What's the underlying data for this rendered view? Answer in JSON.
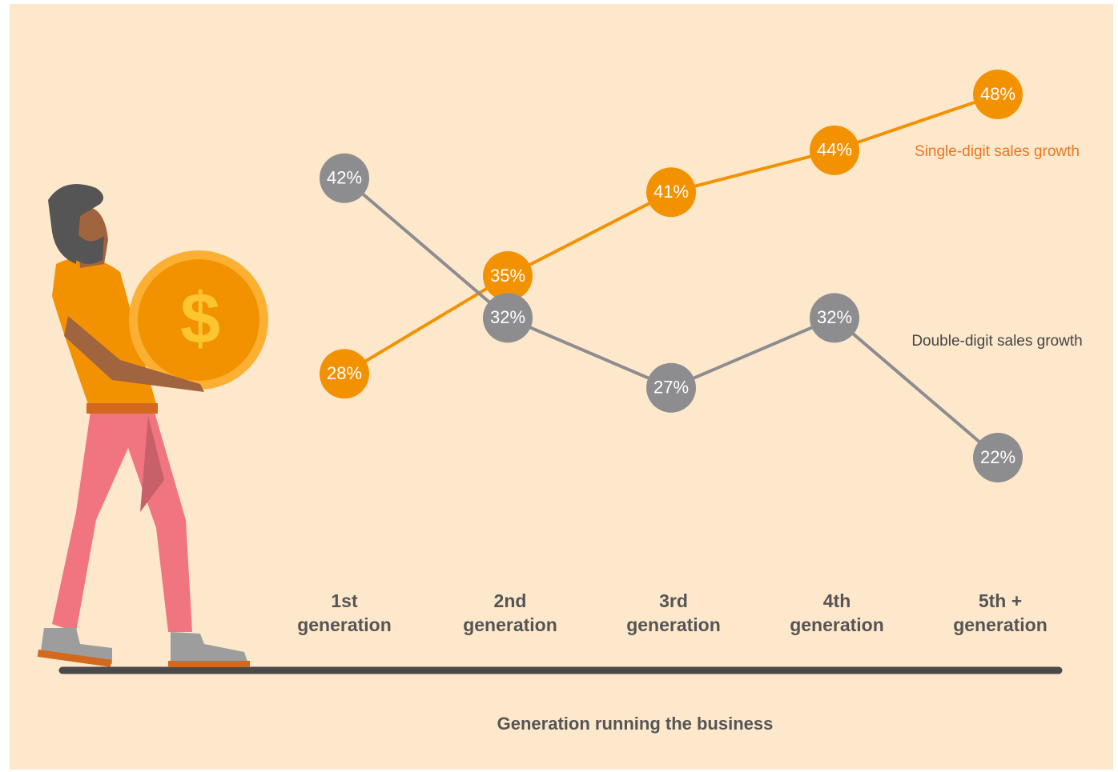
{
  "chart_data": {
    "type": "line",
    "categories": [
      "1st generation",
      "2nd generation",
      "3rd generation",
      "4th generation",
      "5th + generation"
    ],
    "series": [
      {
        "name": "Single-digit sales growth",
        "color": "#f39200",
        "values": [
          28,
          35,
          41,
          44,
          48
        ],
        "value_labels": [
          "28%",
          "35%",
          "41%",
          "44%",
          "48%"
        ]
      },
      {
        "name": "Double-digit sales growth",
        "color": "#8d8d8f",
        "values": [
          42,
          32,
          27,
          32,
          22
        ],
        "value_labels": [
          "42%",
          "32%",
          "27%",
          "32%",
          "22%"
        ]
      }
    ],
    "x_label": "Generation running the business"
  }
}
